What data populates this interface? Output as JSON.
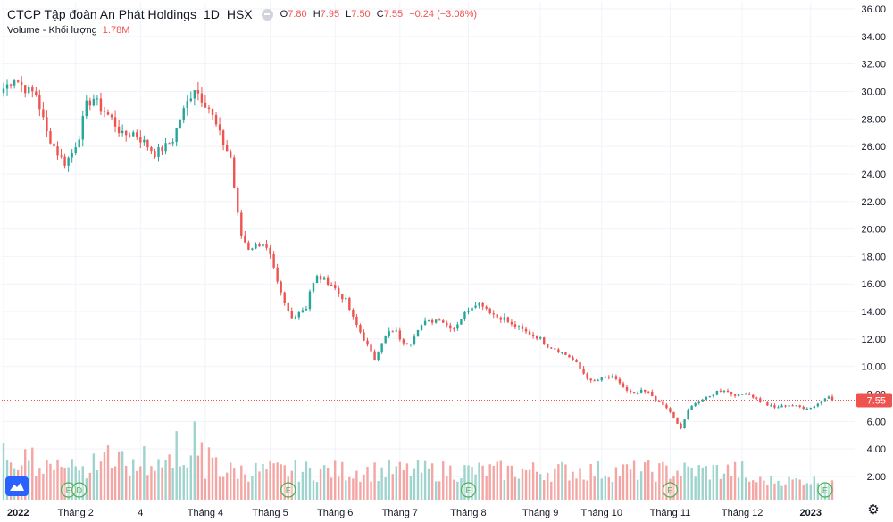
{
  "header": {
    "symbol": "CTCP Tập đoàn An Phát Holdings",
    "timeframe": "1D",
    "exchange": "HSX",
    "ohlc": [
      {
        "label": "O",
        "value": "7.80"
      },
      {
        "label": "H",
        "value": "7.95"
      },
      {
        "label": "L",
        "value": "7.50"
      },
      {
        "label": "C",
        "value": "7.55"
      }
    ],
    "change": "−0.24 (−3.08%)"
  },
  "volume_legend": {
    "label": "Volume - Khối lượng",
    "value": "1.78M"
  },
  "colors": {
    "up": "#26a69a",
    "down": "#ef5350",
    "up_vol": "#9ed3ce",
    "down_vol": "#f4a6a4",
    "grid": "#f0f3fa",
    "text": "#131722",
    "event_ring": "#4caf50",
    "logo": "#2962ff"
  },
  "icons": {
    "logo": "tradingview-logo-icon",
    "settings": "gear-icon",
    "legend_toggle": "minus-circle-icon"
  },
  "chart_data": {
    "type": "candlestick",
    "y_axis": {
      "range": [
        1.0,
        36.0
      ],
      "ticks": [
        "36.00",
        "34.00",
        "32.00",
        "30.00",
        "28.00",
        "26.00",
        "24.00",
        "22.00",
        "20.00",
        "18.00",
        "16.00",
        "14.00",
        "12.00",
        "10.00",
        "8.00",
        "6.00",
        "4.00",
        "2.00"
      ],
      "last_price_label": "7.55"
    },
    "x_axis": {
      "ticks": [
        {
          "label": "2022",
          "index": 0,
          "bold": true
        },
        {
          "label": "Tháng 2",
          "index": 20
        },
        {
          "label": "4",
          "index": 38
        },
        {
          "label": "Tháng 4",
          "index": 56
        },
        {
          "label": "Tháng 5",
          "index": 74
        },
        {
          "label": "Tháng 6",
          "index": 92
        },
        {
          "label": "Tháng 7",
          "index": 110
        },
        {
          "label": "Tháng 8",
          "index": 129
        },
        {
          "label": "Tháng 9",
          "index": 149
        },
        {
          "label": "Tháng 10",
          "index": 166
        },
        {
          "label": "Tháng 11",
          "index": 185
        },
        {
          "label": "Tháng 12",
          "index": 205
        },
        {
          "label": "2023",
          "index": 224,
          "bold": true
        }
      ]
    },
    "grid": true,
    "close_path": [
      [
        0,
        30.2
      ],
      [
        3,
        31.0
      ],
      [
        6,
        30.2
      ],
      [
        9,
        29.8
      ],
      [
        12,
        27.0
      ],
      [
        15,
        25.5
      ],
      [
        17,
        24.8
      ],
      [
        19,
        25.5
      ],
      [
        21,
        26.8
      ],
      [
        23,
        29.0
      ],
      [
        25,
        29.5
      ],
      [
        27,
        28.8
      ],
      [
        30,
        28.0
      ],
      [
        33,
        26.8
      ],
      [
        36,
        27.0
      ],
      [
        39,
        26.3
      ],
      [
        42,
        25.5
      ],
      [
        45,
        26.0
      ],
      [
        47,
        26.5
      ],
      [
        49,
        28.0
      ],
      [
        51,
        29.2
      ],
      [
        53,
        30.3
      ],
      [
        55,
        29.5
      ],
      [
        57,
        28.8
      ],
      [
        59,
        27.5
      ],
      [
        61,
        26.2
      ],
      [
        63,
        25.2
      ],
      [
        64,
        23.0
      ],
      [
        65,
        21.0
      ],
      [
        66,
        19.5
      ],
      [
        68,
        18.6
      ],
      [
        70,
        18.8
      ],
      [
        72,
        19.0
      ],
      [
        74,
        18.0
      ],
      [
        76,
        16.0
      ],
      [
        78,
        14.5
      ],
      [
        80,
        13.5
      ],
      [
        82,
        14.0
      ],
      [
        84,
        14.3
      ],
      [
        85,
        15.5
      ],
      [
        87,
        16.5
      ],
      [
        89,
        16.3
      ],
      [
        91,
        16.0
      ],
      [
        93,
        15.3
      ],
      [
        95,
        14.8
      ],
      [
        97,
        13.5
      ],
      [
        99,
        12.5
      ],
      [
        101,
        11.5
      ],
      [
        103,
        10.5
      ],
      [
        105,
        11.8
      ],
      [
        107,
        12.5
      ],
      [
        109,
        12.5
      ],
      [
        111,
        11.6
      ],
      [
        113,
        11.8
      ],
      [
        115,
        12.8
      ],
      [
        117,
        13.2
      ],
      [
        119,
        13.3
      ],
      [
        121,
        13.5
      ],
      [
        123,
        13.0
      ],
      [
        125,
        12.8
      ],
      [
        127,
        13.5
      ],
      [
        129,
        14.2
      ],
      [
        131,
        14.6
      ],
      [
        133,
        14.5
      ],
      [
        135,
        14.0
      ],
      [
        137,
        13.6
      ],
      [
        139,
        13.5
      ],
      [
        141,
        13.0
      ],
      [
        143,
        12.8
      ],
      [
        145,
        12.5
      ],
      [
        147,
        12.3
      ],
      [
        149,
        12.0
      ],
      [
        151,
        11.5
      ],
      [
        153,
        11.3
      ],
      [
        155,
        11.0
      ],
      [
        157,
        10.7
      ],
      [
        159,
        10.2
      ],
      [
        161,
        9.5
      ],
      [
        163,
        8.9
      ],
      [
        165,
        9.0
      ],
      [
        167,
        9.2
      ],
      [
        169,
        9.2
      ],
      [
        171,
        8.8
      ],
      [
        173,
        8.2
      ],
      [
        175,
        8.0
      ],
      [
        177,
        8.2
      ],
      [
        179,
        8.1
      ],
      [
        181,
        7.6
      ],
      [
        183,
        7.2
      ],
      [
        185,
        6.7
      ],
      [
        187,
        5.8
      ],
      [
        188,
        5.5
      ],
      [
        190,
        6.8
      ],
      [
        192,
        7.4
      ],
      [
        194,
        7.6
      ],
      [
        196,
        7.8
      ],
      [
        198,
        8.2
      ],
      [
        200,
        8.3
      ],
      [
        202,
        8.0
      ],
      [
        204,
        7.9
      ],
      [
        206,
        8.1
      ],
      [
        208,
        7.8
      ],
      [
        210,
        7.5
      ],
      [
        212,
        7.2
      ],
      [
        214,
        7.0
      ],
      [
        216,
        7.1
      ],
      [
        218,
        7.2
      ],
      [
        220,
        7.1
      ],
      [
        222,
        7.0
      ],
      [
        224,
        7.0
      ],
      [
        226,
        7.3
      ],
      [
        228,
        7.7
      ],
      [
        229,
        7.9
      ],
      [
        230,
        7.55
      ]
    ],
    "volume": {
      "baseline_value": 1.0,
      "peaks": [
        {
          "index": 0,
          "value": 4.4
        },
        {
          "index": 48,
          "value": 5.3
        },
        {
          "index": 53,
          "value": 6.0
        },
        {
          "index": 55,
          "value": 4.5
        }
      ],
      "typical_range": [
        1.6,
        3.2
      ],
      "late_range": [
        1.3,
        2.1
      ]
    },
    "event_markers": [
      {
        "index": 18,
        "label": "E"
      },
      {
        "index": 21,
        "label": "D"
      },
      {
        "index": 79,
        "label": "E"
      },
      {
        "index": 129,
        "label": "E"
      },
      {
        "index": 185,
        "label": "E"
      },
      {
        "index": 228,
        "label": "E"
      }
    ],
    "last_price": 7.55
  }
}
